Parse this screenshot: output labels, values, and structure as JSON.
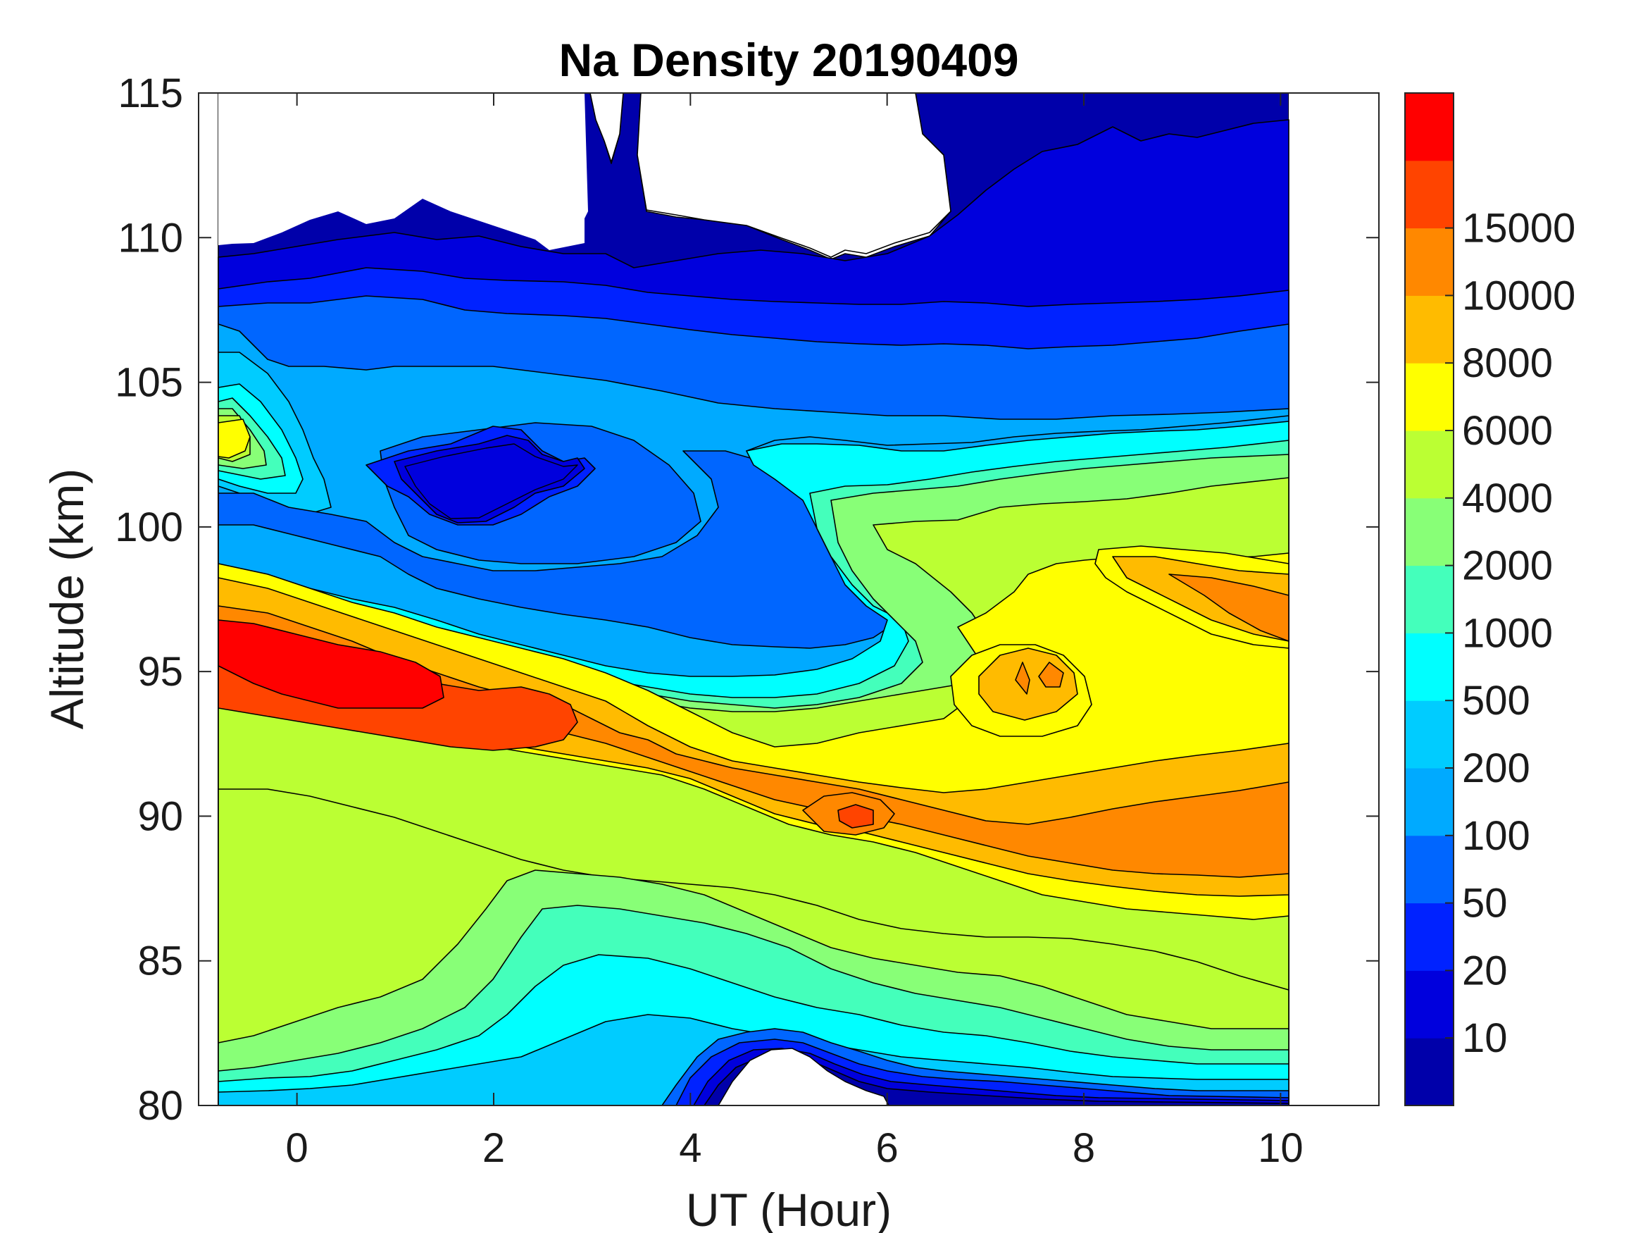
{
  "chart_data": {
    "type": "contourf",
    "title": "Na Density 20190409",
    "xlabel": "UT (Hour)",
    "ylabel": "Altitude (km)",
    "xlim": [
      -1,
      11
    ],
    "ylim": [
      80,
      115
    ],
    "data_x_range": [
      -0.8,
      10.1
    ],
    "xticks": [
      0,
      2,
      4,
      6,
      8,
      10
    ],
    "yticks": [
      80,
      85,
      90,
      95,
      100,
      105,
      110,
      115
    ],
    "colorbar": {
      "tick_labels": [
        "10",
        "20",
        "50",
        "100",
        "200",
        "500",
        "1000",
        "2000",
        "4000",
        "6000",
        "8000",
        "10000",
        "15000"
      ],
      "levels": [
        10,
        20,
        50,
        100,
        200,
        500,
        1000,
        2000,
        4000,
        6000,
        8000,
        10000,
        15000
      ],
      "colors": [
        "#0000aa",
        "#0000dd",
        "#0022ff",
        "#0066ff",
        "#00aaff",
        "#00ccff",
        "#00ffff",
        "#44ffbb",
        "#88ff77",
        "#bbff33",
        "#ffff00",
        "#ffbb00",
        "#ff8800",
        "#ff4400",
        "#ff0000"
      ]
    },
    "features": [
      {
        "feature": "peak layer",
        "x": [
          -0.8,
          1.5,
          2.7
        ],
        "altitude_km": [
          95.5,
          94.5,
          93.2
        ],
        "level_band": ">=10000"
      },
      {
        "feature": "secondary layer",
        "x": [
          4.0,
          5.7,
          8.0,
          10.1
        ],
        "altitude_km": [
          91.0,
          89.7,
          88.5,
          89.0
        ],
        "level_band": "6000-10000"
      },
      {
        "feature": "upper layer",
        "x": [
          9.0,
          10.1
        ],
        "altitude_km": [
          97.5,
          96.8
        ],
        "level_band": "6000-10000"
      },
      {
        "feature": "local maximum",
        "x": [
          7.5
        ],
        "altitude_km": [
          94.8
        ],
        "level_band": "6000-8000"
      },
      {
        "feature": "low-density pocket",
        "x": [
          1.9
        ],
        "altitude_km": [
          101.9
        ],
        "level_band": "20-50"
      },
      {
        "feature": "upper edge",
        "x": [
          -0.8,
          3.0,
          10.1
        ],
        "altitude_km": [
          109.7,
          110.0,
          109.0
        ],
        "level_band": "<10"
      }
    ]
  }
}
